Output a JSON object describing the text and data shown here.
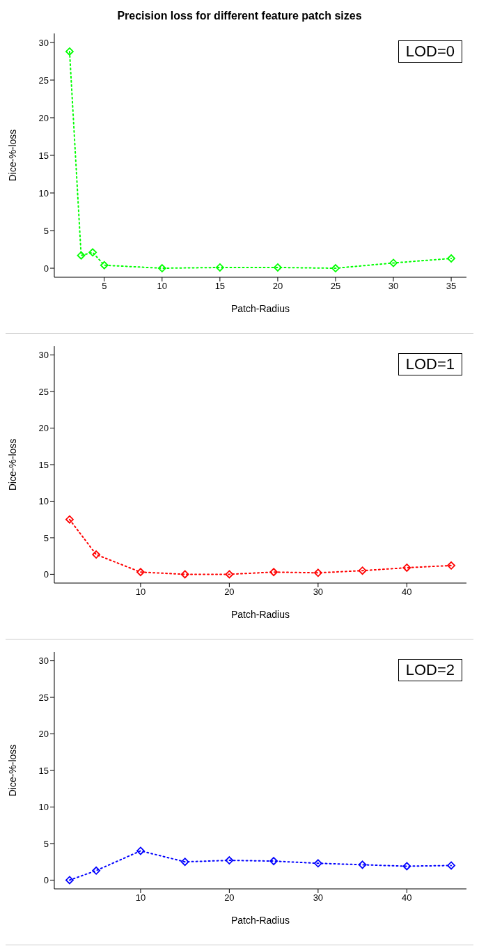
{
  "chart_data": [
    {
      "type": "line",
      "title": "Precision loss for different feature patch sizes",
      "xlabel": "Patch-Radius",
      "ylabel": "Dice-%-loss",
      "annotations": [
        "LOD=0"
      ],
      "x": [
        2,
        3,
        4,
        5,
        10,
        15,
        20,
        25,
        30,
        35
      ],
      "series": [
        {
          "color": "#00ff00",
          "values": [
            28.8,
            1.7,
            2.1,
            0.4,
            0,
            0.1,
            0.1,
            0,
            0.7,
            1.3
          ]
        }
      ],
      "xlim": [
        0.68,
        36.32
      ],
      "xticks": [
        5,
        10,
        15,
        20,
        25,
        30,
        35
      ],
      "ylim": [
        -1.2,
        31.2
      ],
      "yticks": [
        0,
        5,
        10,
        15,
        20,
        25,
        30
      ],
      "marker": "diamond",
      "line_style": "dotted",
      "grid": false,
      "legend": false
    },
    {
      "type": "line",
      "xlabel": "Patch-Radius",
      "ylabel": "Dice-%-loss",
      "annotations": [
        "LOD=1"
      ],
      "x": [
        2,
        5,
        10,
        15,
        20,
        25,
        30,
        35,
        40,
        45
      ],
      "series": [
        {
          "color": "#ff0000",
          "values": [
            7.5,
            2.7,
            0.3,
            0,
            0,
            0.3,
            0.2,
            0.5,
            0.9,
            1.2
          ]
        }
      ],
      "xlim": [
        0.28,
        46.72
      ],
      "xticks": [
        10,
        20,
        30,
        40
      ],
      "ylim": [
        -1.2,
        31.2
      ],
      "yticks": [
        0,
        5,
        10,
        15,
        20,
        25,
        30
      ],
      "marker": "diamond",
      "line_style": "dotted",
      "grid": false,
      "legend": false
    },
    {
      "type": "line",
      "xlabel": "Patch-Radius",
      "ylabel": "Dice-%-loss",
      "annotations": [
        "LOD=2"
      ],
      "x": [
        2,
        5,
        10,
        15,
        20,
        25,
        30,
        35,
        40,
        45
      ],
      "series": [
        {
          "color": "#0000ff",
          "values": [
            0,
            1.3,
            4.0,
            2.5,
            2.7,
            2.6,
            2.3,
            2.1,
            1.9,
            2.0
          ]
        }
      ],
      "xlim": [
        0.28,
        46.72
      ],
      "xticks": [
        10,
        20,
        30,
        40
      ],
      "ylim": [
        -1.2,
        31.2
      ],
      "yticks": [
        0,
        5,
        10,
        15,
        20,
        25,
        30
      ],
      "marker": "diamond",
      "line_style": "dotted",
      "grid": false,
      "legend": false
    }
  ]
}
